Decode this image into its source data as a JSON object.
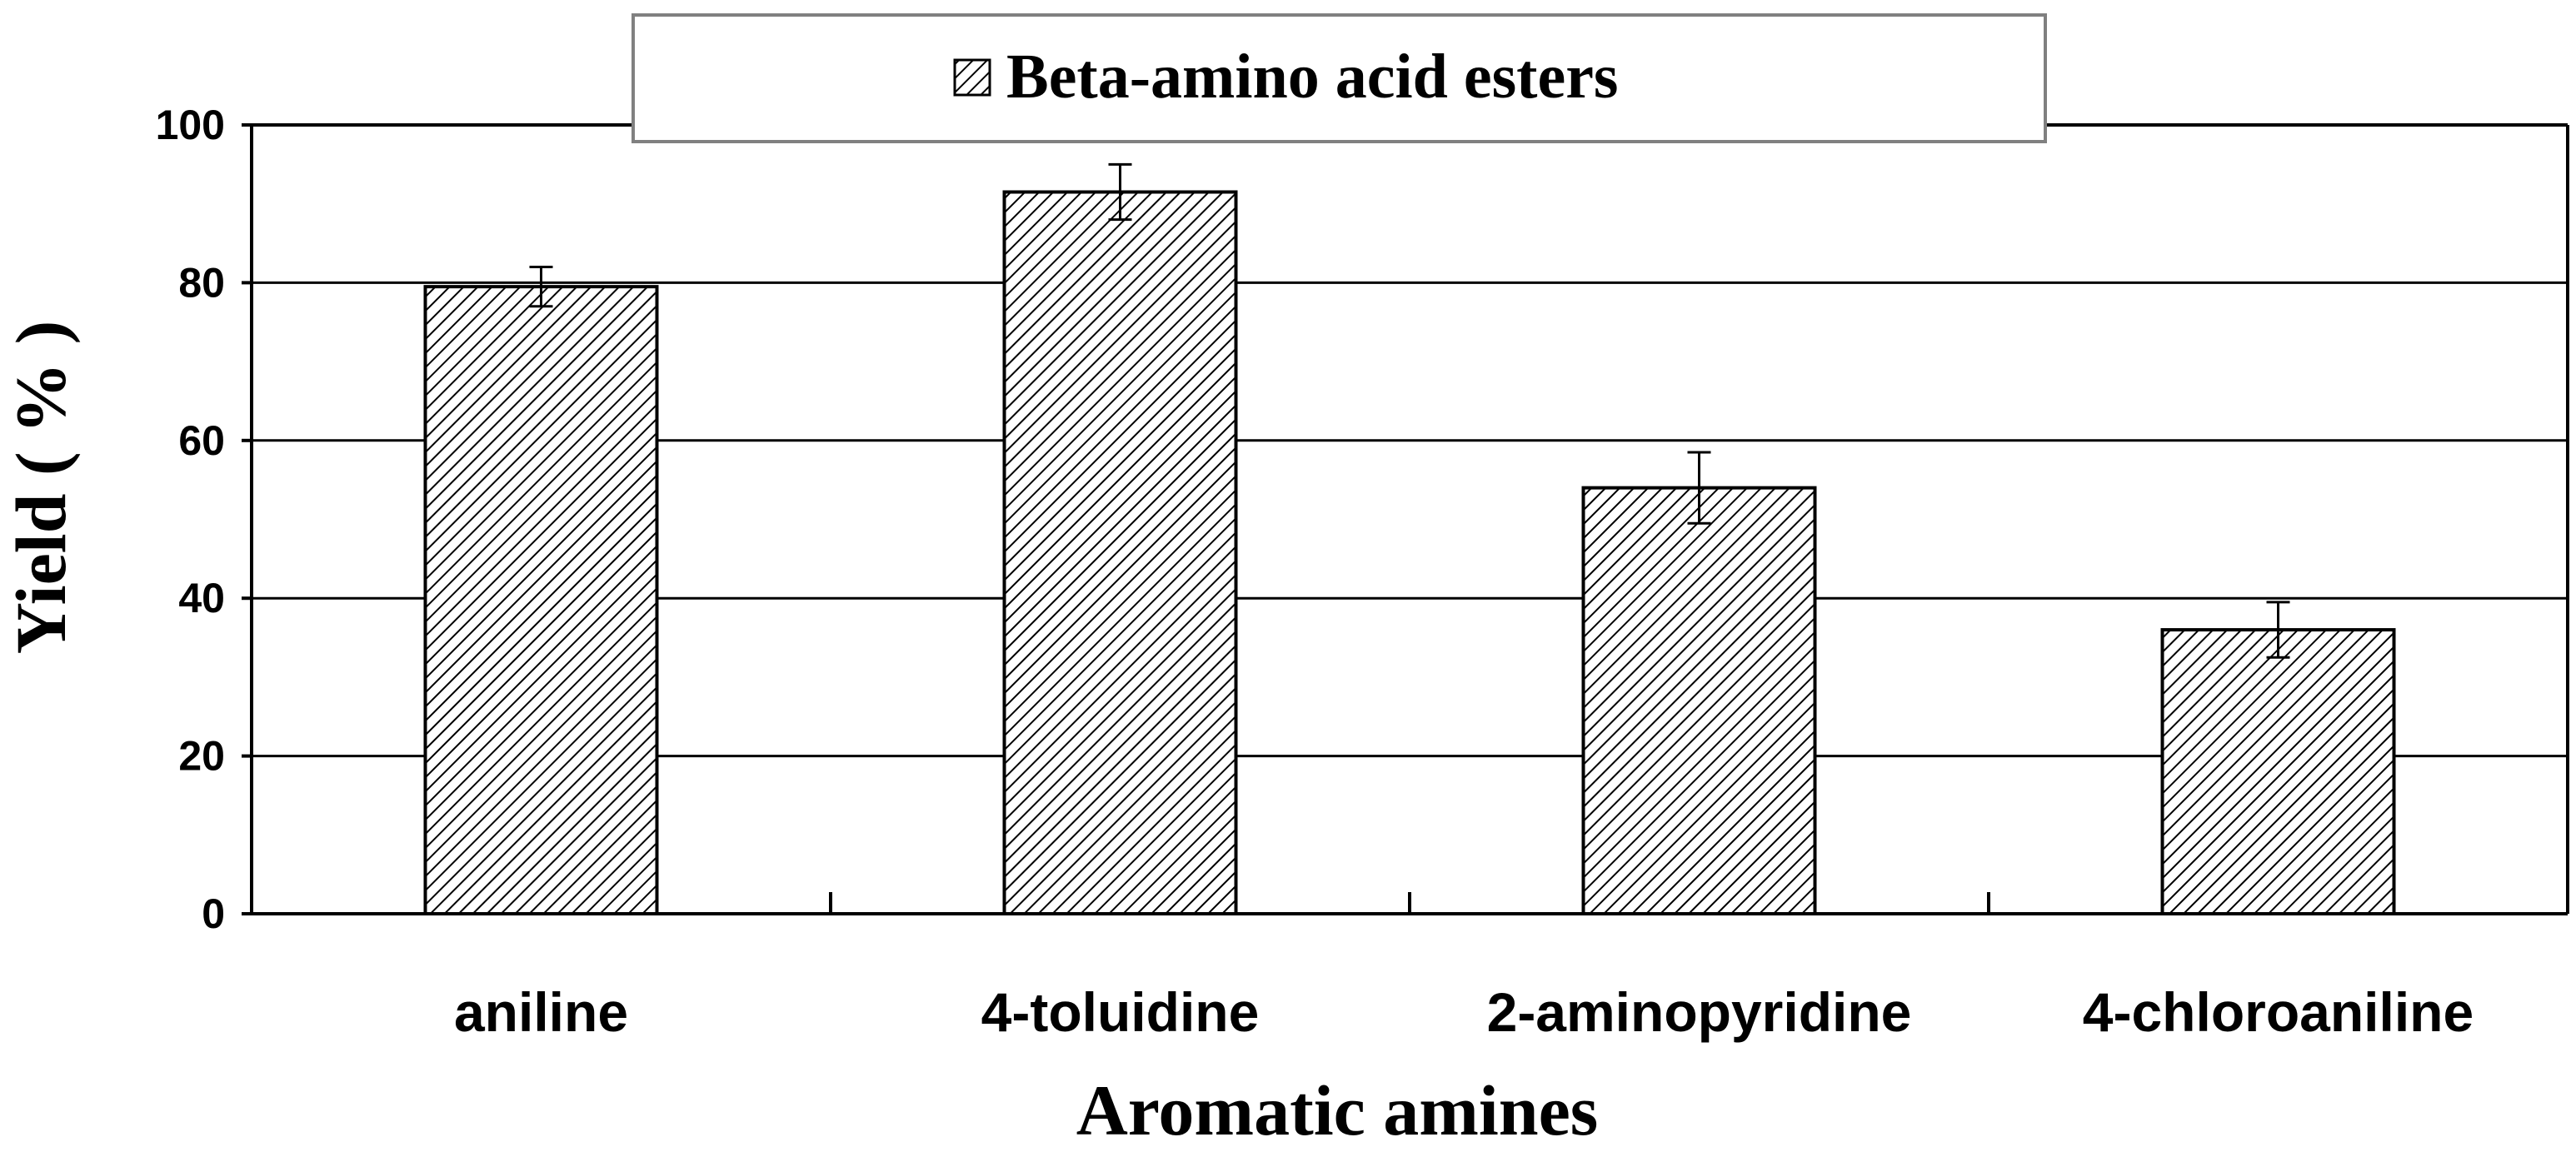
{
  "chart_data": {
    "type": "bar",
    "categories": [
      "aniline",
      "4-toluidine",
      "2-aminopyridine",
      "4-chloroaniline"
    ],
    "series": [
      {
        "name": "Beta-amino acid esters",
        "values": [
          79.5,
          91.5,
          54,
          36
        ],
        "errors": [
          2.5,
          3.5,
          4.5,
          3.5
        ]
      }
    ],
    "xlabel": "Aromatic amines",
    "ylabel": "Yield ( % )",
    "ylim": [
      0,
      100
    ],
    "yticks": [
      0,
      20,
      40,
      60,
      80,
      100
    ],
    "grid": true,
    "legend": "top-center",
    "bar_fill": "diagonal-hatch",
    "colors": {
      "bar_stroke": "#000000",
      "hatch": "#000000",
      "background": "#ffffff",
      "legend_border": "#808080"
    }
  }
}
